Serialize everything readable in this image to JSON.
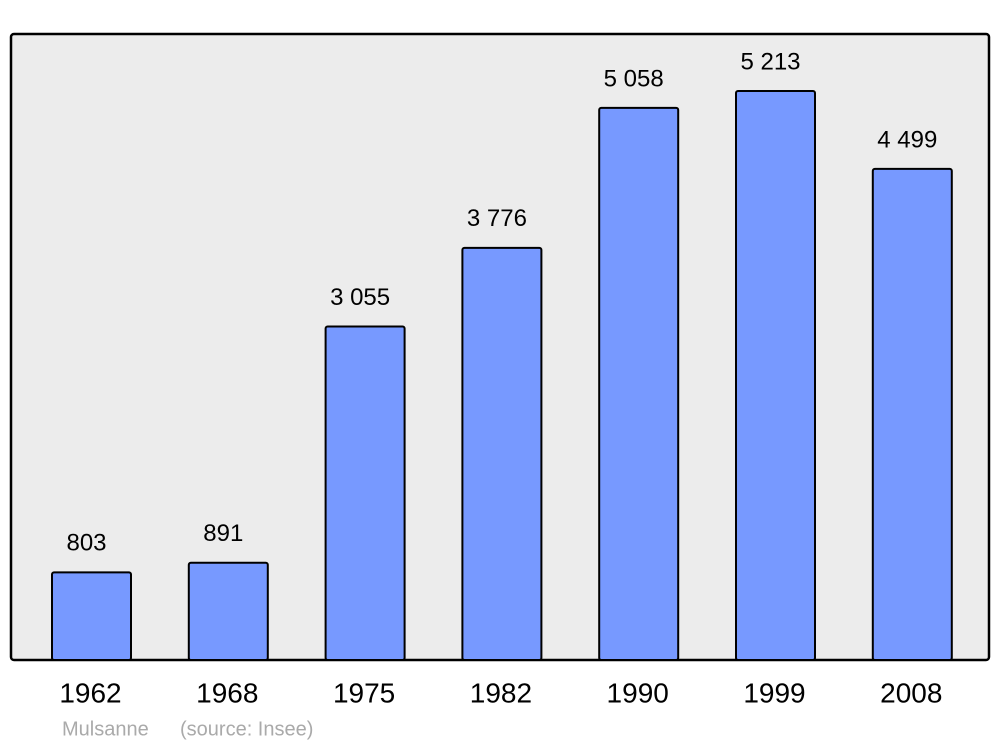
{
  "chart_data": {
    "type": "bar",
    "categories": [
      "1962",
      "1968",
      "1975",
      "1982",
      "1990",
      "1999",
      "2008"
    ],
    "values": [
      803,
      891,
      3055,
      3776,
      5058,
      5213,
      4499
    ],
    "value_labels": [
      "803",
      "891",
      "3 055",
      "3 776",
      "5 058",
      "5 213",
      "4 499"
    ],
    "color": "#7799ff",
    "place": "Mulsanne",
    "source": "(source: Insee)"
  }
}
